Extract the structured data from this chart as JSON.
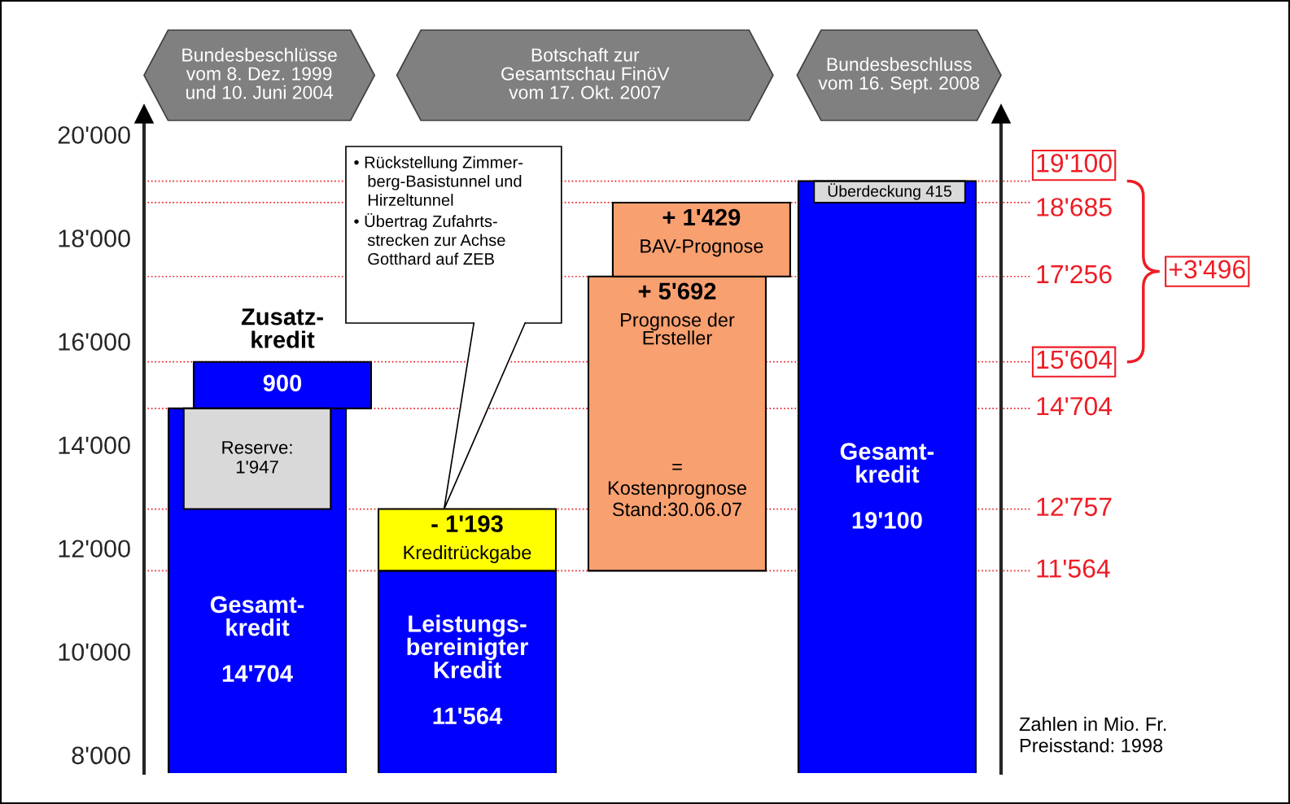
{
  "chart_data": {
    "type": "bar",
    "categories": [
      null,
      null,
      null,
      null
    ],
    "series": [
      {
        "name": "Gesamt-\nkredit",
        "color": "#0000ff",
        "values": [
          14704,
          null,
          null,
          null
        ],
        "value_labels": [
          "14'704",
          null,
          null,
          null
        ]
      },
      {
        "name": "Zusatz-\nkredit",
        "color": "#0000ff",
        "values": [
          900,
          null,
          null,
          null
        ],
        "base": [
          14704,
          null,
          null,
          null
        ],
        "value_labels": [
          "900",
          null,
          null,
          null
        ]
      },
      {
        "name": "Reserve:",
        "color": "#d9d9d9",
        "values": [
          1947,
          null,
          null,
          null
        ],
        "base": [
          12757,
          null,
          null,
          null
        ],
        "value_labels": [
          "1'947",
          null,
          null,
          null
        ]
      },
      {
        "name": "Leistungs-\nbereinigter\nKredit",
        "color": "#0000ff",
        "values": [
          null,
          11564,
          null,
          null
        ],
        "value_labels": [
          null,
          "11'564",
          null,
          null
        ]
      },
      {
        "name": "Kreditrückgabe",
        "color": "#ffff00",
        "values": [
          null,
          -1193,
          null,
          null
        ],
        "base": [
          null,
          12757,
          null,
          null
        ],
        "value_labels": [
          null,
          "- 1'193",
          null,
          null
        ]
      },
      {
        "name": "Prognose der\nErsteller",
        "color": "#f9a070",
        "values": [
          null,
          null,
          5692,
          null
        ],
        "base": [
          null,
          null,
          11564,
          null
        ],
        "value_labels": [
          null,
          null,
          "+ 5'692",
          null
        ]
      },
      {
        "name": "BAV-Prognose",
        "color": "#f9a070",
        "values": [
          null,
          null,
          1429,
          null
        ],
        "base": [
          null,
          null,
          17256,
          null
        ],
        "value_labels": [
          null,
          null,
          "+ 1'429",
          null
        ]
      },
      {
        "name": "Gesamt-\nkredit",
        "color": "#0000ff",
        "values": [
          null,
          null,
          null,
          19100
        ],
        "value_labels": [
          null,
          null,
          null,
          "19'100"
        ]
      },
      {
        "name": "Überdeckung",
        "color": "#d9d9d9",
        "values": [
          null,
          null,
          null,
          415
        ],
        "base": [
          null,
          null,
          null,
          18685
        ],
        "value_labels": [
          null,
          null,
          null,
          "415"
        ]
      }
    ],
    "ylim": [
      7650,
      20400
    ],
    "yticks": [
      {
        "value": 8000,
        "label": "8'000"
      },
      {
        "value": 10000,
        "label": "10'000"
      },
      {
        "value": 12000,
        "label": "12'000"
      },
      {
        "value": 14000,
        "label": "14'000"
      },
      {
        "value": 16000,
        "label": "16'000"
      },
      {
        "value": 18000,
        "label": "18'000"
      },
      {
        "value": 20000,
        "label": "20'000"
      }
    ],
    "tick_labels": "y",
    "ref_lines": [
      {
        "axis": "y",
        "value": 19100,
        "label": "19'100",
        "color": "#ee1c25",
        "line_style": "dotted"
      },
      {
        "axis": "y",
        "value": 18685,
        "label": "18'685",
        "color": "#ee1c25",
        "line_style": "dotted"
      },
      {
        "axis": "y",
        "value": 17256,
        "label": "17'256",
        "color": "#ee1c25",
        "line_style": "dotted"
      },
      {
        "axis": "y",
        "value": 15604,
        "label": "15'604",
        "color": "#ee1c25",
        "line_style": "dotted"
      },
      {
        "axis": "y",
        "value": 14704,
        "label": "14'704",
        "color": "#ee1c25",
        "line_style": "dotted"
      },
      {
        "axis": "y",
        "value": 12757,
        "label": "12'757",
        "color": "#ee1c25",
        "line_style": "dotted"
      },
      {
        "axis": "y",
        "value": 11564,
        "label": "11'564",
        "color": "#ee1c25",
        "line_style": "dotted"
      }
    ],
    "annotations": [
      "Bundesbeschlüsse\nvom 8. Dez. 1999\nund 10. Juni 2004",
      "Botschaft zur\nGesamtschau FinöV\nvom 17. Okt. 2007",
      "Bundesbeschluss\nvom 16. Sept. 2008",
      "• Rückstellung Zimmer-\n   berg-Basistunnel und\n   Hirzeltunnel\n• Übertrag Zufahrts-\n   strecken zur Achse\n   Gotthard auf ZEB",
      "=\nKostenprognose\nStand:30.06.07",
      "+3'496",
      "Zahlen in Mio. Fr.\nPreisstand: 1998"
    ]
  }
}
